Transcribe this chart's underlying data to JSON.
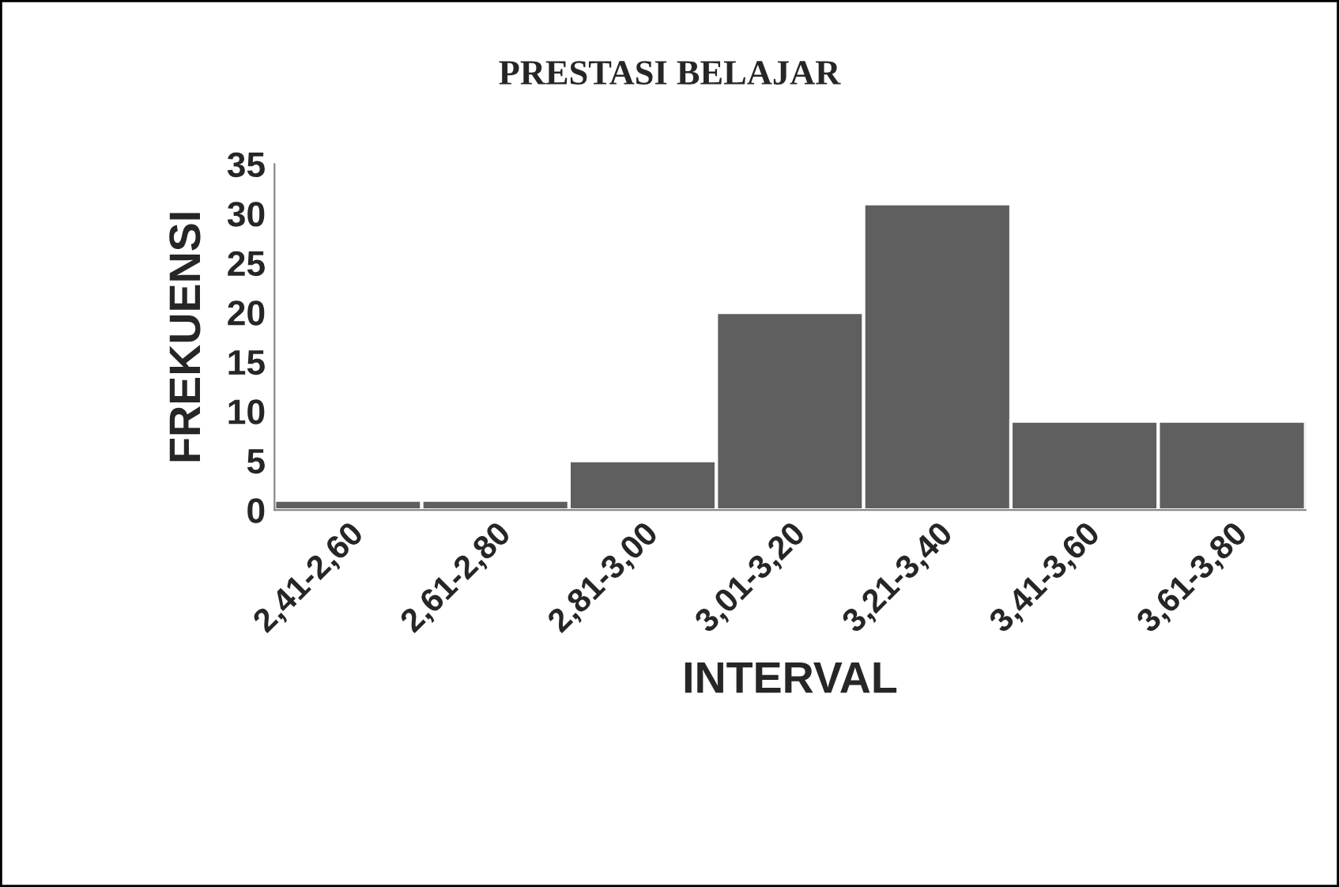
{
  "chart_data": {
    "type": "bar",
    "title": "PRESTASI BELAJAR",
    "xlabel": "INTERVAL",
    "ylabel": "FREKUENSI",
    "categories": [
      "2,41-2,60",
      "2,61-2,80",
      "2,81-3,00",
      "3,01-3,20",
      "3,21-3,40",
      "3,41-3,60",
      "3,61-3,80"
    ],
    "values": [
      1,
      1,
      5,
      20,
      31,
      9,
      9
    ],
    "color": "#5f5f5f",
    "ylim": [
      0,
      35
    ],
    "yticks": [
      0,
      5,
      10,
      15,
      20,
      25,
      30,
      35
    ],
    "grid": false,
    "legend": false
  }
}
